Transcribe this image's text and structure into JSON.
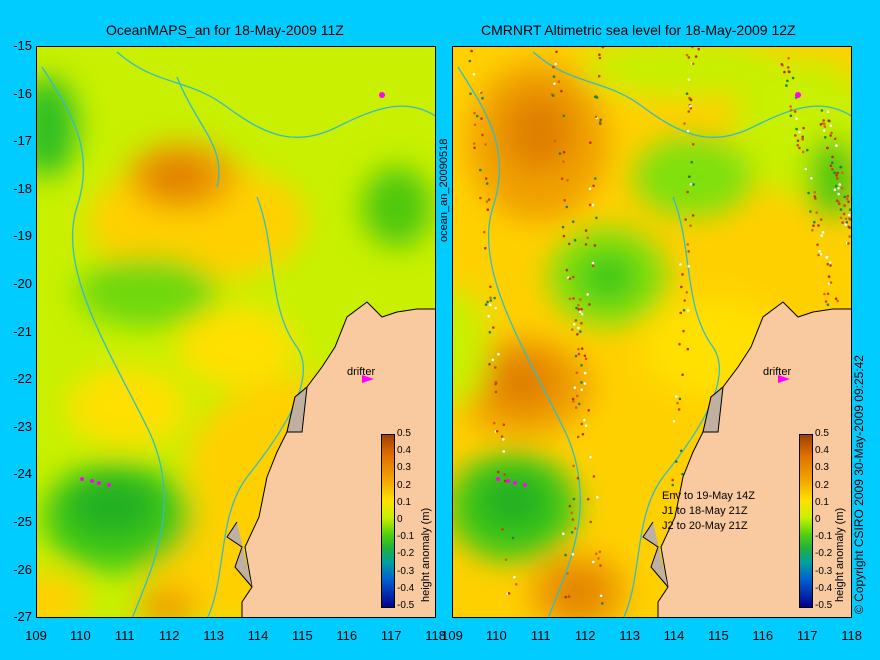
{
  "left_panel": {
    "title": "OceanMAPS_an for 18-May-2009 11Z",
    "drifter_label": "drifter",
    "colorbar_label": "height anomaly (m)"
  },
  "right_panel": {
    "title": "CMRNRT Altimetric sea level  for 18-May-2009 12Z",
    "drifter_label": "drifter",
    "colorbar_label": "height anomaly (m)",
    "legend_lines": [
      "Env to 19-May 14Z",
      "J1 to 18-May 21Z",
      "J2 to 20-May 21Z"
    ]
  },
  "side_label": "ocean_an_20090518",
  "copyright": "© Copyright CSIRO 2009   30-May-2009 09:25:42",
  "y_ticks": [
    "-15",
    "-16",
    "-17",
    "-18",
    "-19",
    "-20",
    "-21",
    "-22",
    "-23",
    "-24",
    "-25",
    "-26",
    "-27"
  ],
  "x_ticks": [
    "109",
    "110",
    "111",
    "112",
    "113",
    "114",
    "115",
    "116",
    "117",
    "118"
  ],
  "colorbar_ticks": [
    "0.5",
    "0.4",
    "0.3",
    "0.2",
    "0.1",
    "0",
    "-0.1",
    "-0.2",
    "-0.3",
    "-0.4",
    "-0.5"
  ],
  "colors": {
    "background": "#00ccff",
    "land": "#f9caa0",
    "ocean_base": "#c8f000",
    "positive": "#f0a000",
    "negative": "#30c020",
    "drifter": "#ff00ff",
    "contour": "#33bbcc"
  }
}
